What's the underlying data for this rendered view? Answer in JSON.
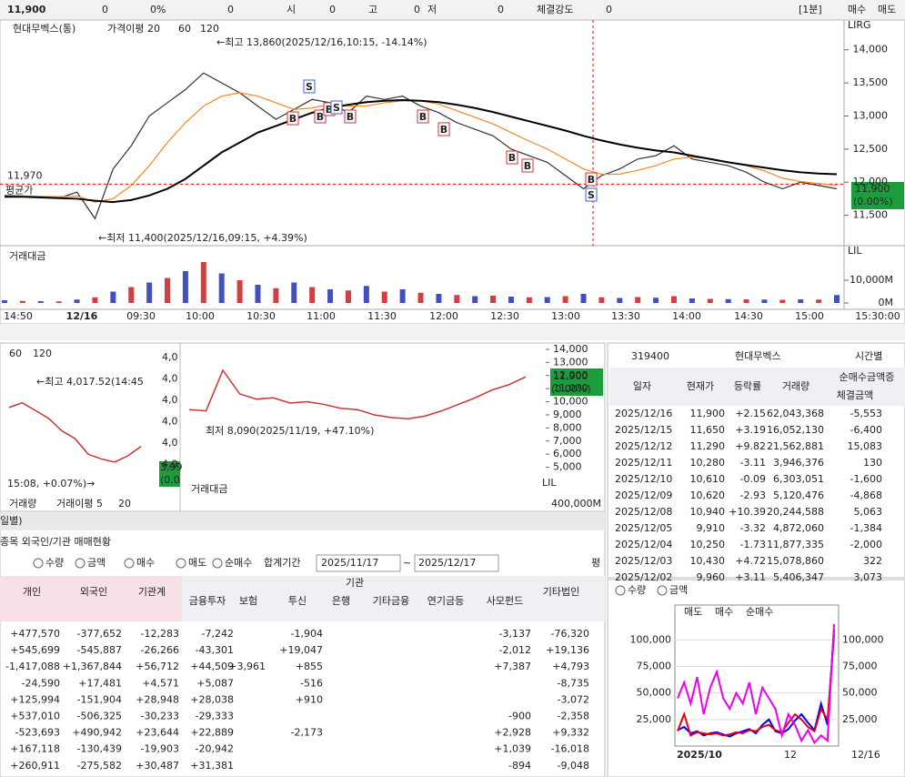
{
  "topbar": {
    "price": "11,900",
    "change": "0",
    "rate": "0%",
    "volume": "0",
    "open_label": "시",
    "open": "0",
    "high_label": "고",
    "high": "0",
    "low_label": "저",
    "low": "0",
    "strength_label": "체결강도",
    "strength": "0",
    "period": "[1분]",
    "buy": "매수",
    "sell": "매도"
  },
  "main_chart": {
    "type": "line",
    "title": "현대무벡스(통)",
    "ma_label": "가격이평 20",
    "ma60": "60",
    "ma120": "120",
    "corner_label": "LIRG",
    "high_note": "←최고 13,860(2025/12/16,10:15, -14.14%)",
    "low_note": "←최저 11,400(2025/12/16,09:15, +4.39%)",
    "avg_price": {
      "value": 11970,
      "label": "11,970"
    },
    "avg_label": "평균가",
    "current": "11,900",
    "current_rate": "(0.00%)",
    "ylim": [
      11110,
      14340
    ],
    "yticks": [
      {
        "value": 14000,
        "label": "14,000"
      },
      {
        "value": 13500,
        "label": "13,500"
      },
      {
        "value": 13000,
        "label": "13,000"
      },
      {
        "value": 12500,
        "label": "12,500"
      },
      {
        "value": 12000,
        "label": "12,000"
      },
      {
        "value": 11500,
        "label": "11,500"
      }
    ],
    "categories": [
      "14:50",
      "12/16",
      "09:30",
      "10:00",
      "10:30",
      "11:00",
      "11:30",
      "12:00",
      "12:30",
      "13:00",
      "13:30",
      "14:00",
      "14:30",
      "15:00",
      "15:30:00"
    ],
    "series": [
      {
        "name": "가격",
        "color": "#333333",
        "values": [
          11800,
          11790,
          11780,
          11760,
          11850,
          11450,
          12200,
          12550,
          13000,
          13200,
          13400,
          13650,
          13500,
          13350,
          13150,
          12950,
          13100,
          13250,
          13200,
          13050,
          13300,
          13250,
          13300,
          13150,
          13050,
          12900,
          12800,
          12700,
          12500,
          12400,
          12300,
          12100,
          11900,
          12100,
          12200,
          12350,
          12400,
          12550,
          12350,
          12300,
          12250,
          12150,
          12000,
          11900,
          12000,
          11950,
          11900
        ]
      },
      {
        "name": "가격이평 20",
        "color": "#f08a24",
        "values": [
          11790,
          11790,
          11785,
          11780,
          11790,
          11700,
          11750,
          11950,
          12250,
          12600,
          12900,
          13150,
          13300,
          13350,
          13300,
          13200,
          13100,
          13120,
          13180,
          13150,
          13150,
          13200,
          13230,
          13230,
          13180,
          13080,
          12980,
          12880,
          12750,
          12620,
          12500,
          12350,
          12200,
          12120,
          12120,
          12180,
          12250,
          12350,
          12380,
          12350,
          12300,
          12250,
          12170,
          12060,
          12010,
          11980,
          11950
        ]
      },
      {
        "name": "120",
        "color": "#000000",
        "values": [
          11780,
          11780,
          11770,
          11760,
          11750,
          11720,
          11700,
          11730,
          11800,
          11900,
          12050,
          12250,
          12450,
          12600,
          12750,
          12850,
          12950,
          13050,
          13120,
          13170,
          13210,
          13230,
          13240,
          13230,
          13210,
          13170,
          13120,
          13060,
          12990,
          12920,
          12850,
          12780,
          12700,
          12630,
          12570,
          12520,
          12480,
          12450,
          12400,
          12350,
          12300,
          12260,
          12220,
          12180,
          12150,
          12130,
          12120
        ]
      }
    ],
    "volume_label": "거래대금",
    "volume_corner": "LIL",
    "volume_ylim": [
      0,
      24000
    ],
    "volume_yticks": [
      {
        "value": 10000,
        "label": "10,000M"
      },
      {
        "value": 0,
        "label": "0M"
      }
    ],
    "volume": [
      1200,
      900,
      800,
      700,
      1500,
      2500,
      5000,
      7000,
      9000,
      11000,
      14000,
      18000,
      13000,
      10000,
      8000,
      6500,
      9000,
      7000,
      6000,
      5500,
      7500,
      5000,
      6000,
      4500,
      4000,
      3500,
      3000,
      3200,
      2800,
      2500,
      2600,
      3000,
      4000,
      2500,
      2200,
      2600,
      2300,
      3000,
      2000,
      1800,
      1700,
      1600,
      1500,
      1400,
      1600,
      1500,
      3500
    ],
    "signals": [
      "S",
      "B",
      "B",
      "B",
      "S",
      "B",
      "B",
      "B",
      "B",
      "B",
      "S",
      "B"
    ]
  },
  "mini_left": {
    "ma60": "60",
    "ma120": "120",
    "high_note": "←최고 4,017.52(14:45",
    "low_note": "15:08, +0.07%)→",
    "axis_labels": [
      "4,0",
      "4,0",
      "4,0",
      "4,0",
      "4,0",
      "4,0"
    ],
    "volume_label": "거래량",
    "volume_ma": "거래이평 5",
    "volume_ma2": "20",
    "current": "3,99",
    "current_rate": "(0.0",
    "ylim": [
      3960,
      4030
    ],
    "values": [
      4005,
      4008,
      4003,
      3998,
      3990,
      3985,
      3975,
      3972,
      3970,
      3974,
      3980
    ]
  },
  "mini_mid": {
    "low_note": "최저 8,090(2025/11/19, +47.10%)",
    "current": "11,900",
    "current_rate": "(0.00%)",
    "volume_label": "거래대금",
    "volume_tick": "400,000M",
    "corner": "LIL",
    "ylim": [
      4400,
      14400
    ],
    "yticks": [
      {
        "value": 14000,
        "label": "14,000"
      },
      {
        "value": 13000,
        "label": "13,000"
      },
      {
        "value": 12000,
        "label": "12,000"
      },
      {
        "value": 11000,
        "label": "11,000"
      },
      {
        "value": 10000,
        "label": "10,000"
      },
      {
        "value": 9000,
        "label": "9,000"
      },
      {
        "value": 8000,
        "label": "8,000"
      },
      {
        "value": 7000,
        "label": "7,000"
      },
      {
        "value": 6000,
        "label": "6,000"
      },
      {
        "value": 5000,
        "label": "5,000"
      }
    ],
    "values": [
      9400,
      9300,
      12400,
      10600,
      10200,
      10300,
      9900,
      10000,
      9800,
      9500,
      9400,
      9000,
      8800,
      8700,
      8900,
      9300,
      9800,
      10300,
      10900,
      11300,
      11900
    ]
  },
  "stock_table": {
    "code": "319400",
    "name": "현대무벡스",
    "option": "시간별",
    "columns": [
      "일자",
      "현재가",
      "등락률",
      "거래량",
      "순매수금액증",
      "체결금액"
    ],
    "rows": [
      [
        "2025/12/16",
        "11,900",
        "+2.15",
        "62,043,368",
        "-5,553"
      ],
      [
        "2025/12/15",
        "11,650",
        "+3.19",
        "16,052,130",
        "-6,400"
      ],
      [
        "2025/12/12",
        "11,290",
        "+9.82",
        "21,562,881",
        "15,083"
      ],
      [
        "2025/12/11",
        "10,280",
        "-3.11",
        "3,946,376",
        "130"
      ],
      [
        "2025/12/10",
        "10,610",
        "-0.09",
        "6,303,051",
        "-1,600"
      ],
      [
        "2025/12/09",
        "10,620",
        "-2.93",
        "5,120,476",
        "-4,868"
      ],
      [
        "2025/12/08",
        "10,940",
        "+10.39",
        "20,244,588",
        "5,063"
      ],
      [
        "2025/12/05",
        "9,910",
        "-3.32",
        "4,872,060",
        "-1,384"
      ],
      [
        "2025/12/04",
        "10,250",
        "-1.73",
        "11,877,335",
        "-2,000"
      ],
      [
        "2025/12/03",
        "10,430",
        "+4.72",
        "15,078,860",
        "322"
      ],
      [
        "2025/12/02",
        "9,960",
        "+3.11",
        "5,406,347",
        "3,073"
      ]
    ]
  },
  "investor": {
    "tab": "일별)",
    "title": "종목 외국인/기관 매매현황",
    "options": [
      "수량",
      "금액",
      "매수",
      "매도",
      "순매수"
    ],
    "period_label": "합계기간",
    "from": "2025/11/17",
    "tilde": "~",
    "to": "2025/12/17",
    "check": "평",
    "group": "기관",
    "columns": [
      "개인",
      "외국인",
      "기관계",
      "금융투자",
      "보험",
      "투신",
      "은행",
      "기타금융",
      "연기금등",
      "사모펀드",
      "기타법인"
    ],
    "rows": [
      [
        "+477,570",
        "-377,652",
        "-12,283",
        "-7,242",
        null,
        "-1,904",
        null,
        null,
        null,
        "-3,137",
        "-76,320"
      ],
      [
        "+545,699",
        "-545,887",
        "-26,266",
        "-43,301",
        null,
        "+19,047",
        null,
        null,
        null,
        "-2,012",
        "+19,136"
      ],
      [
        "-1,417,088",
        "+1,367,844",
        "+56,712",
        "+44,509",
        "+3,961",
        "+855",
        null,
        null,
        null,
        "+7,387",
        "+4,793"
      ],
      [
        "-24,590",
        "+17,481",
        "+4,571",
        "+5,087",
        null,
        "-516",
        null,
        null,
        null,
        null,
        "-8,735"
      ],
      [
        "+125,994",
        "-151,904",
        "+28,948",
        "+28,038",
        null,
        "+910",
        null,
        null,
        null,
        null,
        "-3,072"
      ],
      [
        "+537,010",
        "-506,325",
        "-30,233",
        "-29,333",
        null,
        null,
        null,
        null,
        null,
        "-900",
        "-2,358"
      ],
      [
        "-523,693",
        "+490,942",
        "+23,644",
        "+22,889",
        null,
        "-2,173",
        null,
        null,
        null,
        "+2,928",
        "+9,332"
      ],
      [
        "+167,118",
        "-130,439",
        "-19,903",
        "-20,942",
        null,
        null,
        null,
        null,
        null,
        "+1,039",
        "-16,018"
      ],
      [
        "+260,911",
        "-275,582",
        "+30,487",
        "+31,381",
        null,
        null,
        null,
        null,
        null,
        "-894",
        "-9,048"
      ]
    ]
  },
  "flow_chart": {
    "type": "line",
    "options": [
      "수량",
      "금액"
    ],
    "ylim": [
      0,
      120000
    ],
    "yticks": [
      {
        "value": 100000,
        "label": "100,000"
      },
      {
        "value": 75000,
        "label": "75,000"
      },
      {
        "value": 50000,
        "label": "50,000"
      },
      {
        "value": 25000,
        "label": "25,000"
      }
    ],
    "categories": [
      "2025/10",
      "12",
      "12/16"
    ],
    "series": [
      {
        "name": "매도",
        "color": "#0000ff",
        "values": [
          15000,
          18000,
          12000,
          14000,
          10000,
          12000,
          13000,
          11000,
          9000,
          12000,
          14000,
          16000,
          12000,
          20000,
          25000,
          14000,
          12000,
          16000,
          24000,
          30000,
          22000,
          15000,
          40000,
          20000,
          110000
        ]
      },
      {
        "name": "매수",
        "color": "#e0001a",
        "values": [
          14000,
          30000,
          10000,
          13000,
          12000,
          11000,
          12000,
          10000,
          11000,
          13000,
          12000,
          15000,
          14000,
          18000,
          20000,
          15000,
          13000,
          22000,
          30000,
          25000,
          18000,
          14000,
          35000,
          25000,
          105000
        ]
      },
      {
        "name": "순매수",
        "color": "#ee00ee",
        "values": [
          45000,
          60000,
          40000,
          65000,
          30000,
          55000,
          70000,
          45000,
          35000,
          50000,
          40000,
          60000,
          30000,
          55000,
          45000,
          35000,
          10000,
          30000,
          20000,
          5000,
          15000,
          3000,
          10000,
          5000,
          115000
        ]
      }
    ]
  }
}
